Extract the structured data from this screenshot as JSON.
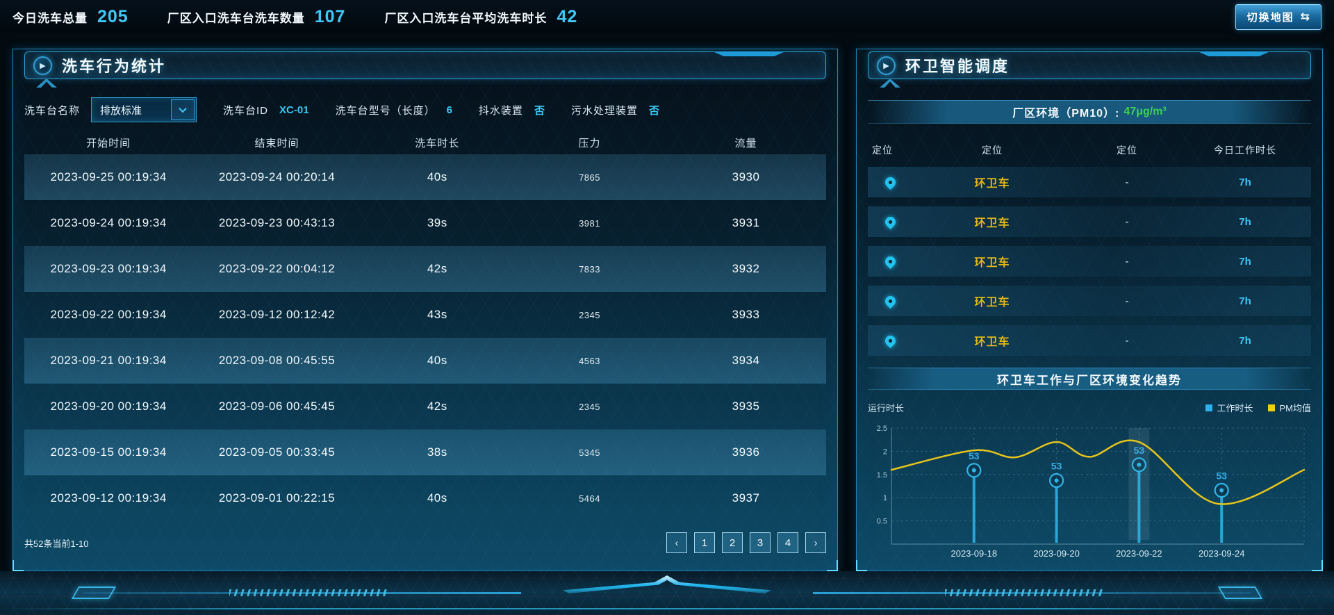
{
  "topbar": {
    "stats": [
      {
        "label": "今日洗车总量",
        "value": "205"
      },
      {
        "label": "厂区入口洗车台洗车数量",
        "value": "107"
      },
      {
        "label": "厂区入口洗车台平均洗车时长",
        "value": "42"
      }
    ],
    "switch_map_label": "切换地图",
    "switch_map_icon": "⇆"
  },
  "icons": {
    "play": "▶",
    "prev": "‹",
    "next": "›"
  },
  "wash_panel": {
    "title": "洗车行为统计",
    "filters": {
      "name_label": "洗车台名称",
      "name_value": "排放标准",
      "id_label": "洗车台ID",
      "id_value": "XC-01",
      "model_label": "洗车台型号（长度）",
      "model_value": "6",
      "shake_label": "抖水装置",
      "shake_value": "否",
      "sewage_label": "污水处理装置",
      "sewage_value": "否"
    },
    "table": {
      "headers": [
        "开始时间",
        "结束时间",
        "洗车时长",
        "压力",
        "流量"
      ],
      "rows": [
        [
          "2023-09-25 00:19:34",
          "2023-09-24 00:20:14",
          "40s",
          "7865",
          "3930"
        ],
        [
          "2023-09-24 00:19:34",
          "2023-09-23 00:43:13",
          "39s",
          "3981",
          "3931"
        ],
        [
          "2023-09-23 00:19:34",
          "2023-09-22 00:04:12",
          "42s",
          "7833",
          "3932"
        ],
        [
          "2023-09-22 00:19:34",
          "2023-09-12 00:12:42",
          "43s",
          "2345",
          "3933"
        ],
        [
          "2023-09-21 00:19:34",
          "2023-09-08 00:45:55",
          "40s",
          "4563",
          "3934"
        ],
        [
          "2023-09-20 00:19:34",
          "2023-09-06 00:45:45",
          "42s",
          "2345",
          "3935"
        ],
        [
          "2023-09-15 00:19:34",
          "2023-09-05 00:33:45",
          "38s",
          "5345",
          "3936"
        ],
        [
          "2023-09-12 00:19:34",
          "2023-09-01 00:22:15",
          "40s",
          "5464",
          "3937"
        ]
      ]
    },
    "footer": {
      "count_text": "共52条当前1-10",
      "pages": [
        "1",
        "2",
        "3",
        "4"
      ]
    }
  },
  "sanitation_panel": {
    "title": "环卫智能调度",
    "env_label": "厂区环境（PM10）:",
    "env_value": "47μg/m³",
    "vehicle_table": {
      "headers": [
        "定位",
        "定位",
        "定位",
        "今日工作时长"
      ],
      "rows": [
        {
          "name": "环卫车",
          "dash": "-",
          "hours": "7h"
        },
        {
          "name": "环卫车",
          "dash": "-",
          "hours": "7h"
        },
        {
          "name": "环卫车",
          "dash": "-",
          "hours": "7h"
        },
        {
          "name": "环卫车",
          "dash": "-",
          "hours": "7h"
        },
        {
          "name": "环卫车",
          "dash": "-",
          "hours": "7h"
        }
      ]
    },
    "chart_title": "环卫车工作与厂区环境变化趋势"
  },
  "chart_data": {
    "type": "line",
    "title": "环卫车工作与厂区环境变化趋势",
    "ylabel": "运行时长",
    "ylim": [
      0,
      2.5
    ],
    "yticks": [
      0.5,
      1,
      1.5,
      2,
      2.5
    ],
    "categories": [
      "2023-09-18",
      "2023-09-20",
      "2023-09-22",
      "2023-09-24"
    ],
    "category_x": [
      0.2,
      0.4,
      0.6,
      0.8
    ],
    "grid": true,
    "legend_position": "top-right",
    "legend": [
      {
        "name": "工作时长",
        "color": "#2bb1ef"
      },
      {
        "name": "PM均值",
        "color": "#f2cd13"
      }
    ],
    "highlight_band_x": 0.6,
    "series": [
      {
        "name": "工作时长",
        "type": "lollipop",
        "color": "#2fb5e8",
        "x": [
          0.2,
          0.4,
          0.6,
          0.8
        ],
        "values": [
          1.59,
          1.37,
          1.71,
          1.16
        ],
        "labels": [
          "53",
          "53",
          "53",
          "53"
        ]
      },
      {
        "name": "PM均值",
        "type": "spline",
        "color": "#e7c41a",
        "points": [
          [
            0,
            1.6
          ],
          [
            0.2,
            2.02
          ],
          [
            0.3,
            1.87
          ],
          [
            0.4,
            2.2
          ],
          [
            0.48,
            1.88
          ],
          [
            0.6,
            2.2
          ],
          [
            0.79,
            0.87
          ],
          [
            1,
            1.6
          ]
        ]
      }
    ]
  }
}
